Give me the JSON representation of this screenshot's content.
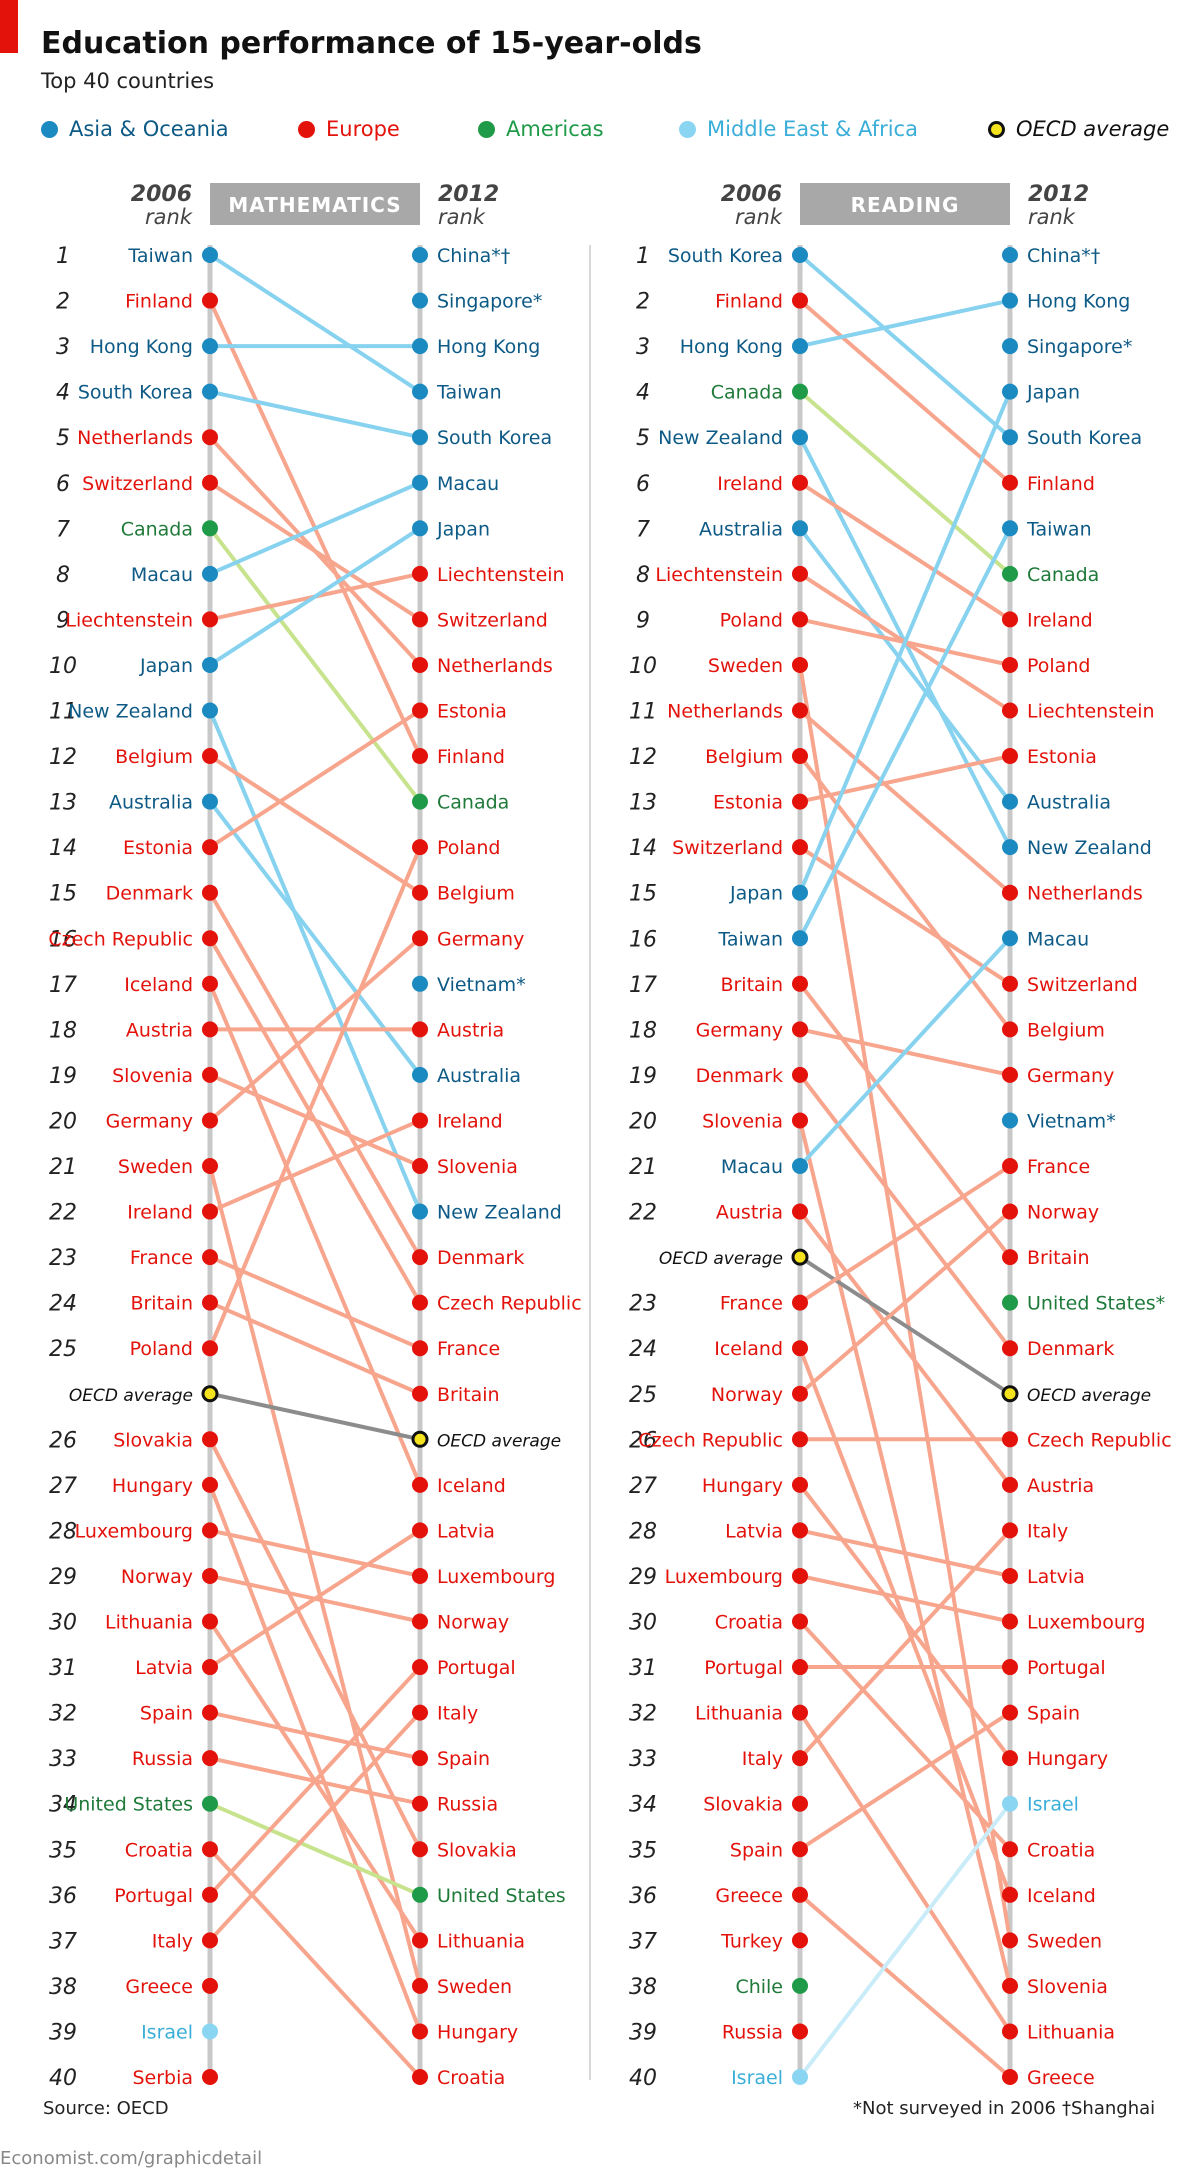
{
  "title": "Education performance of 15-year-olds",
  "subtitle": "Top 40 countries",
  "colors": {
    "asia": "#1b8ac1",
    "europe": "#e3120b",
    "americas": "#1f9a48",
    "mea": "#8ad6f2",
    "oecd": "#f5e31e",
    "line_asia": "#86d2ef",
    "line_europe": "#f7a58d",
    "line_americas": "#c7e38d",
    "line_mea": "#c9ecf8",
    "line_oecd": "#8c8c8c",
    "axis": "#c8c8c8",
    "header": "#a8a8a8",
    "text_asia": "#0d5a86",
    "text_europe": "#e3120b",
    "text_americas": "#1f7a3a",
    "text_mea": "#3aaed8"
  },
  "legend": [
    {
      "key": "asia",
      "label": "Asia & Oceania"
    },
    {
      "key": "europe",
      "label": "Europe"
    },
    {
      "key": "americas",
      "label": "Americas"
    },
    {
      "key": "mea",
      "label": "Middle East & Africa"
    },
    {
      "key": "oecd",
      "label": "OECD average"
    }
  ],
  "source": "Source: OECD",
  "footnote_not_surveyed": "*Not surveyed in 2006",
  "footnote_shanghai": "†Shanghai",
  "site": "Economist.com/graphicdetail",
  "chart_data": [
    {
      "type": "slope",
      "title": "MATHEMATICS",
      "left_header": [
        "2006",
        "rank"
      ],
      "right_header": [
        "2012",
        "rank"
      ],
      "left": [
        {
          "rank": "1",
          "name": "Taiwan",
          "region": "asia"
        },
        {
          "rank": "2",
          "name": "Finland",
          "region": "europe"
        },
        {
          "rank": "3",
          "name": "Hong Kong",
          "region": "asia"
        },
        {
          "rank": "4",
          "name": "South Korea",
          "region": "asia"
        },
        {
          "rank": "5",
          "name": "Netherlands",
          "region": "europe"
        },
        {
          "rank": "6",
          "name": "Switzerland",
          "region": "europe"
        },
        {
          "rank": "7",
          "name": "Canada",
          "region": "americas"
        },
        {
          "rank": "8",
          "name": "Macau",
          "region": "asia"
        },
        {
          "rank": "9",
          "name": "Liechtenstein",
          "region": "europe"
        },
        {
          "rank": "10",
          "name": "Japan",
          "region": "asia"
        },
        {
          "rank": "11",
          "name": "New Zealand",
          "region": "asia"
        },
        {
          "rank": "12",
          "name": "Belgium",
          "region": "europe"
        },
        {
          "rank": "13",
          "name": "Australia",
          "region": "asia"
        },
        {
          "rank": "14",
          "name": "Estonia",
          "region": "europe"
        },
        {
          "rank": "15",
          "name": "Denmark",
          "region": "europe"
        },
        {
          "rank": "16",
          "name": "Czech Republic",
          "region": "europe"
        },
        {
          "rank": "17",
          "name": "Iceland",
          "region": "europe"
        },
        {
          "rank": "18",
          "name": "Austria",
          "region": "europe"
        },
        {
          "rank": "19",
          "name": "Slovenia",
          "region": "europe"
        },
        {
          "rank": "20",
          "name": "Germany",
          "region": "europe"
        },
        {
          "rank": "21",
          "name": "Sweden",
          "region": "europe"
        },
        {
          "rank": "22",
          "name": "Ireland",
          "region": "europe"
        },
        {
          "rank": "23",
          "name": "France",
          "region": "europe"
        },
        {
          "rank": "24",
          "name": "Britain",
          "region": "europe"
        },
        {
          "rank": "25",
          "name": "Poland",
          "region": "europe"
        },
        {
          "rank": "",
          "name": "OECD average",
          "region": "oecd"
        },
        {
          "rank": "26",
          "name": "Slovakia",
          "region": "europe"
        },
        {
          "rank": "27",
          "name": "Hungary",
          "region": "europe"
        },
        {
          "rank": "28",
          "name": "Luxembourg",
          "region": "europe"
        },
        {
          "rank": "29",
          "name": "Norway",
          "region": "europe"
        },
        {
          "rank": "30",
          "name": "Lithuania",
          "region": "europe"
        },
        {
          "rank": "31",
          "name": "Latvia",
          "region": "europe"
        },
        {
          "rank": "32",
          "name": "Spain",
          "region": "europe"
        },
        {
          "rank": "33",
          "name": "Russia",
          "region": "europe"
        },
        {
          "rank": "34",
          "name": "United States",
          "region": "americas"
        },
        {
          "rank": "35",
          "name": "Croatia",
          "region": "europe"
        },
        {
          "rank": "36",
          "name": "Portugal",
          "region": "europe"
        },
        {
          "rank": "37",
          "name": "Italy",
          "region": "europe"
        },
        {
          "rank": "38",
          "name": "Greece",
          "region": "europe"
        },
        {
          "rank": "39",
          "name": "Israel",
          "region": "mea"
        },
        {
          "rank": "40",
          "name": "Serbia",
          "region": "europe"
        }
      ],
      "right": [
        {
          "name": "China*†",
          "region": "asia"
        },
        {
          "name": "Singapore*",
          "region": "asia"
        },
        {
          "name": "Hong Kong",
          "region": "asia"
        },
        {
          "name": "Taiwan",
          "region": "asia"
        },
        {
          "name": "South Korea",
          "region": "asia"
        },
        {
          "name": "Macau",
          "region": "asia"
        },
        {
          "name": "Japan",
          "region": "asia"
        },
        {
          "name": "Liechtenstein",
          "region": "europe"
        },
        {
          "name": "Switzerland",
          "region": "europe"
        },
        {
          "name": "Netherlands",
          "region": "europe"
        },
        {
          "name": "Estonia",
          "region": "europe"
        },
        {
          "name": "Finland",
          "region": "europe"
        },
        {
          "name": "Canada",
          "region": "americas"
        },
        {
          "name": "Poland",
          "region": "europe"
        },
        {
          "name": "Belgium",
          "region": "europe"
        },
        {
          "name": "Germany",
          "region": "europe"
        },
        {
          "name": "Vietnam*",
          "region": "asia"
        },
        {
          "name": "Austria",
          "region": "europe"
        },
        {
          "name": "Australia",
          "region": "asia"
        },
        {
          "name": "Ireland",
          "region": "europe"
        },
        {
          "name": "Slovenia",
          "region": "europe"
        },
        {
          "name": "New Zealand",
          "region": "asia"
        },
        {
          "name": "Denmark",
          "region": "europe"
        },
        {
          "name": "Czech Republic",
          "region": "europe"
        },
        {
          "name": "France",
          "region": "europe"
        },
        {
          "name": "Britain",
          "region": "europe"
        },
        {
          "name": "OECD average",
          "region": "oecd"
        },
        {
          "name": "Iceland",
          "region": "europe"
        },
        {
          "name": "Latvia",
          "region": "europe"
        },
        {
          "name": "Luxembourg",
          "region": "europe"
        },
        {
          "name": "Norway",
          "region": "europe"
        },
        {
          "name": "Portugal",
          "region": "europe"
        },
        {
          "name": "Italy",
          "region": "europe"
        },
        {
          "name": "Spain",
          "region": "europe"
        },
        {
          "name": "Russia",
          "region": "europe"
        },
        {
          "name": "Slovakia",
          "region": "europe"
        },
        {
          "name": "United States",
          "region": "americas"
        },
        {
          "name": "Lithuania",
          "region": "europe"
        },
        {
          "name": "Sweden",
          "region": "europe"
        },
        {
          "name": "Hungary",
          "region": "europe"
        },
        {
          "name": "Croatia",
          "region": "europe"
        }
      ]
    },
    {
      "type": "slope",
      "title": "READING",
      "left_header": [
        "2006",
        "rank"
      ],
      "right_header": [
        "2012",
        "rank"
      ],
      "left": [
        {
          "rank": "1",
          "name": "South Korea",
          "region": "asia"
        },
        {
          "rank": "2",
          "name": "Finland",
          "region": "europe"
        },
        {
          "rank": "3",
          "name": "Hong Kong",
          "region": "asia"
        },
        {
          "rank": "4",
          "name": "Canada",
          "region": "americas"
        },
        {
          "rank": "5",
          "name": "New Zealand",
          "region": "asia"
        },
        {
          "rank": "6",
          "name": "Ireland",
          "region": "europe"
        },
        {
          "rank": "7",
          "name": "Australia",
          "region": "asia"
        },
        {
          "rank": "8",
          "name": "Liechtenstein",
          "region": "europe"
        },
        {
          "rank": "9",
          "name": "Poland",
          "region": "europe"
        },
        {
          "rank": "10",
          "name": "Sweden",
          "region": "europe"
        },
        {
          "rank": "11",
          "name": "Netherlands",
          "region": "europe"
        },
        {
          "rank": "12",
          "name": "Belgium",
          "region": "europe"
        },
        {
          "rank": "13",
          "name": "Estonia",
          "region": "europe"
        },
        {
          "rank": "14",
          "name": "Switzerland",
          "region": "europe"
        },
        {
          "rank": "15",
          "name": "Japan",
          "region": "asia"
        },
        {
          "rank": "16",
          "name": "Taiwan",
          "region": "asia"
        },
        {
          "rank": "17",
          "name": "Britain",
          "region": "europe"
        },
        {
          "rank": "18",
          "name": "Germany",
          "region": "europe"
        },
        {
          "rank": "19",
          "name": "Denmark",
          "region": "europe"
        },
        {
          "rank": "20",
          "name": "Slovenia",
          "region": "europe"
        },
        {
          "rank": "21",
          "name": "Macau",
          "region": "asia"
        },
        {
          "rank": "22",
          "name": "Austria",
          "region": "europe"
        },
        {
          "rank": "",
          "name": "OECD average",
          "region": "oecd"
        },
        {
          "rank": "23",
          "name": "France",
          "region": "europe"
        },
        {
          "rank": "24",
          "name": "Iceland",
          "region": "europe"
        },
        {
          "rank": "25",
          "name": "Norway",
          "region": "europe"
        },
        {
          "rank": "26",
          "name": "Czech Republic",
          "region": "europe"
        },
        {
          "rank": "27",
          "name": "Hungary",
          "region": "europe"
        },
        {
          "rank": "28",
          "name": "Latvia",
          "region": "europe"
        },
        {
          "rank": "29",
          "name": "Luxembourg",
          "region": "europe"
        },
        {
          "rank": "30",
          "name": "Croatia",
          "region": "europe"
        },
        {
          "rank": "31",
          "name": "Portugal",
          "region": "europe"
        },
        {
          "rank": "32",
          "name": "Lithuania",
          "region": "europe"
        },
        {
          "rank": "33",
          "name": "Italy",
          "region": "europe"
        },
        {
          "rank": "34",
          "name": "Slovakia",
          "region": "europe"
        },
        {
          "rank": "35",
          "name": "Spain",
          "region": "europe"
        },
        {
          "rank": "36",
          "name": "Greece",
          "region": "europe"
        },
        {
          "rank": "37",
          "name": "Turkey",
          "region": "europe"
        },
        {
          "rank": "38",
          "name": "Chile",
          "region": "americas"
        },
        {
          "rank": "39",
          "name": "Russia",
          "region": "europe"
        },
        {
          "rank": "40",
          "name": "Israel",
          "region": "mea"
        }
      ],
      "right": [
        {
          "name": "China*†",
          "region": "asia"
        },
        {
          "name": "Hong Kong",
          "region": "asia"
        },
        {
          "name": "Singapore*",
          "region": "asia"
        },
        {
          "name": "Japan",
          "region": "asia"
        },
        {
          "name": "South Korea",
          "region": "asia"
        },
        {
          "name": "Finland",
          "region": "europe"
        },
        {
          "name": "Taiwan",
          "region": "asia"
        },
        {
          "name": "Canada",
          "region": "americas"
        },
        {
          "name": "Ireland",
          "region": "europe"
        },
        {
          "name": "Poland",
          "region": "europe"
        },
        {
          "name": "Liechtenstein",
          "region": "europe"
        },
        {
          "name": "Estonia",
          "region": "europe"
        },
        {
          "name": "Australia",
          "region": "asia"
        },
        {
          "name": "New Zealand",
          "region": "asia"
        },
        {
          "name": "Netherlands",
          "region": "europe"
        },
        {
          "name": "Macau",
          "region": "asia"
        },
        {
          "name": "Switzerland",
          "region": "europe"
        },
        {
          "name": "Belgium",
          "region": "europe"
        },
        {
          "name": "Germany",
          "region": "europe"
        },
        {
          "name": "Vietnam*",
          "region": "asia"
        },
        {
          "name": "France",
          "region": "europe"
        },
        {
          "name": "Norway",
          "region": "europe"
        },
        {
          "name": "Britain",
          "region": "europe"
        },
        {
          "name": "United States*",
          "region": "americas"
        },
        {
          "name": "Denmark",
          "region": "europe"
        },
        {
          "name": "OECD average",
          "region": "oecd"
        },
        {
          "name": "Czech Republic",
          "region": "europe"
        },
        {
          "name": "Austria",
          "region": "europe"
        },
        {
          "name": "Italy",
          "region": "europe"
        },
        {
          "name": "Latvia",
          "region": "europe"
        },
        {
          "name": "Luxembourg",
          "region": "europe"
        },
        {
          "name": "Portugal",
          "region": "europe"
        },
        {
          "name": "Spain",
          "region": "europe"
        },
        {
          "name": "Hungary",
          "region": "europe"
        },
        {
          "name": "Israel",
          "region": "mea"
        },
        {
          "name": "Croatia",
          "region": "europe"
        },
        {
          "name": "Iceland",
          "region": "europe"
        },
        {
          "name": "Sweden",
          "region": "europe"
        },
        {
          "name": "Slovenia",
          "region": "europe"
        },
        {
          "name": "Lithuania",
          "region": "europe"
        },
        {
          "name": "Greece",
          "region": "europe"
        }
      ]
    }
  ]
}
